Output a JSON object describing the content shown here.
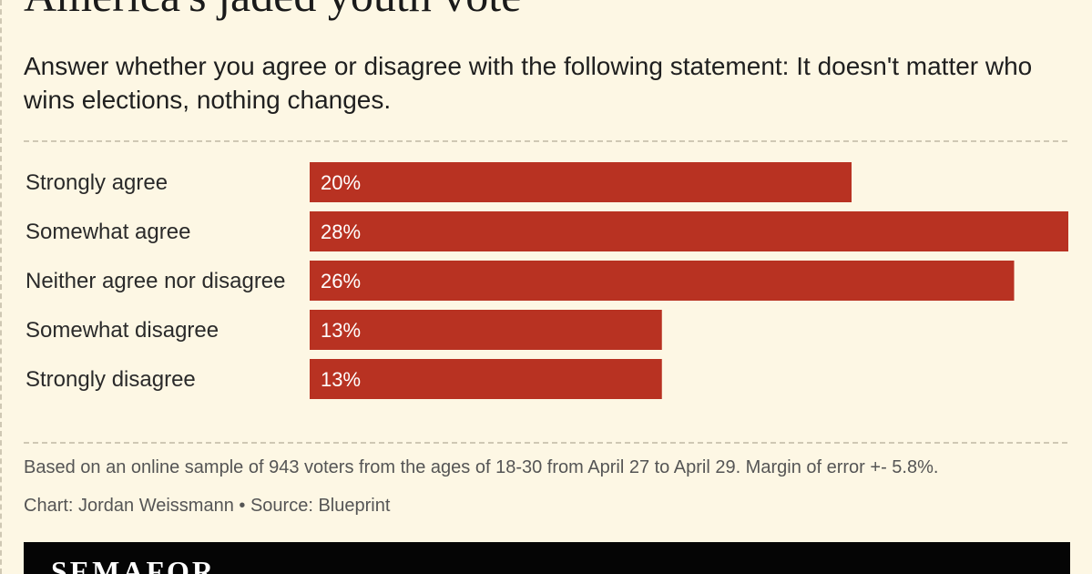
{
  "title": "America's jaded youth vote",
  "subtitle": "Answer whether you agree or disagree with the following statement: It doesn't matter who wins elections, nothing changes.",
  "chart_data": {
    "type": "bar",
    "orientation": "horizontal",
    "categories": [
      "Strongly agree",
      "Somewhat agree",
      "Neither agree nor disagree",
      "Somewhat disagree",
      "Strongly disagree"
    ],
    "values": [
      20,
      28,
      26,
      13,
      13
    ],
    "value_labels": [
      "20%",
      "28%",
      "26%",
      "13%",
      "13%"
    ],
    "unit": "%",
    "xlim": [
      0,
      28
    ],
    "bar_color": "#b83222",
    "grid": false,
    "legend": "none"
  },
  "note": "Based on an online sample of 943 voters from the ages of 18-30 from April 27 to April 29. Margin of error +- 5.8%.",
  "credit": "Chart: Jordan Weissmann • Source: Blueprint",
  "footer": {
    "logo_text": "SEMAFOR"
  },
  "colors": {
    "background": "#fdf7e4",
    "bar": "#b83222",
    "footer": "#050505"
  }
}
